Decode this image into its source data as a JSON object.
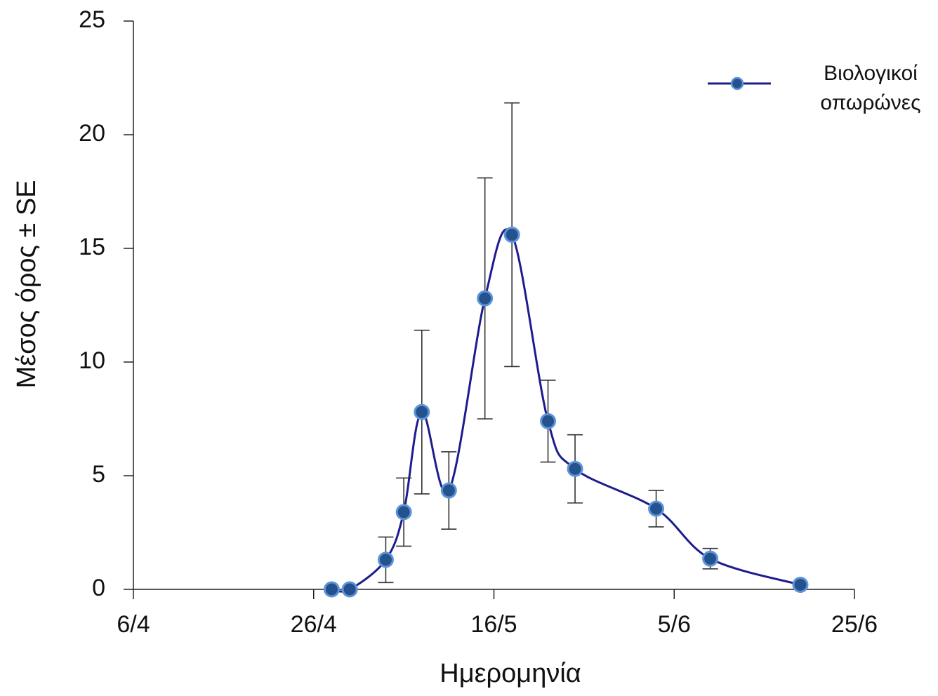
{
  "chart_data": {
    "type": "line",
    "x_label": "Ημερομηνία",
    "y_label": "Μέσος όρος ± SE",
    "xlim": [
      "6/4",
      "25/6"
    ],
    "xticks": [
      "6/4",
      "26/4",
      "16/5",
      "5/6",
      "25/6"
    ],
    "ylim": [
      0,
      25
    ],
    "yticks": [
      0,
      5,
      10,
      15,
      20,
      25
    ],
    "legend": "upper right",
    "x": [
      "28/4",
      "30/4",
      "4/5",
      "6/5",
      "8/5",
      "11/5",
      "15/5",
      "18/5",
      "22/5",
      "25/5",
      "3/6",
      "9/6",
      "19/6"
    ],
    "series": [
      {
        "name": "Βιολογικοί οπωρώνες",
        "color": "#1c1c8f",
        "values": [
          0,
          0,
          1.3,
          3.4,
          7.8,
          4.35,
          12.8,
          15.6,
          7.4,
          5.3,
          3.55,
          1.35,
          0.2
        ],
        "errors": [
          0,
          0,
          1.0,
          1.5,
          3.6,
          1.7,
          5.3,
          5.8,
          1.8,
          1.5,
          0.8,
          0.45,
          0
        ]
      }
    ]
  }
}
